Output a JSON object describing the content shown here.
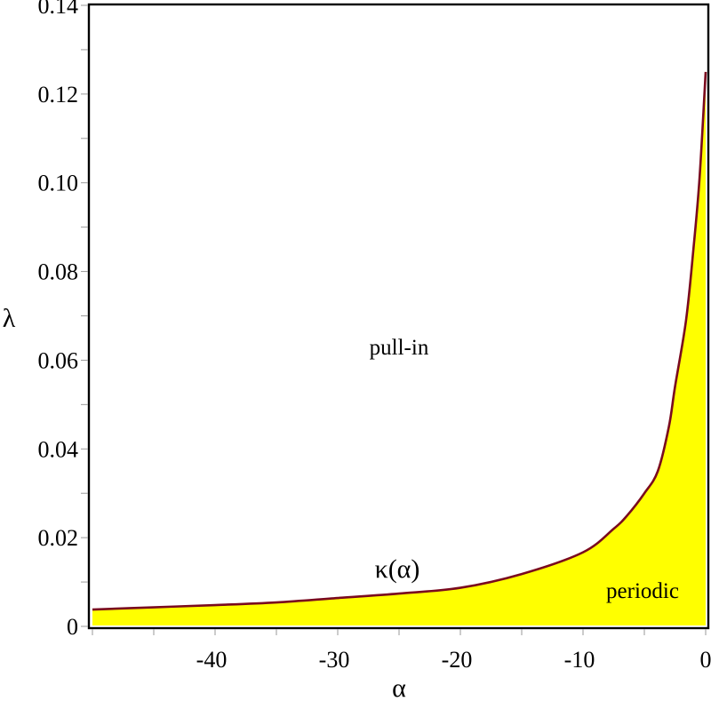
{
  "chart_data": {
    "type": "area",
    "title": "",
    "xlabel": "α",
    "ylabel": "λ",
    "xlim": [
      -50,
      0
    ],
    "ylim": [
      0,
      0.14
    ],
    "grid": false,
    "legend": null,
    "x_ticks": [
      -40,
      -30,
      -20,
      -10,
      0
    ],
    "x_tick_labels": [
      "-40",
      "-30",
      "-20",
      "-10",
      "0"
    ],
    "x_minor_ticks": [
      -50,
      -45,
      -35,
      -25,
      -15,
      -5
    ],
    "y_ticks": [
      0,
      0.02,
      0.04,
      0.06,
      0.08,
      0.1,
      0.12,
      0.14
    ],
    "y_tick_labels": [
      "0",
      "0.02",
      "0.04",
      "0.06",
      "0.08",
      "0.10",
      "0.12",
      "0.14"
    ],
    "y_minor_ticks": [
      0.01,
      0.03,
      0.05,
      0.07,
      0.09,
      0.11,
      0.13
    ],
    "series": [
      {
        "name": "κ(α)",
        "line_color": "#7a0a1e",
        "fill_color": "#ffff00",
        "fill_below": true,
        "x": [
          -50,
          -45,
          -40,
          -35,
          -30,
          -25,
          -20,
          -15,
          -10,
          -7.5,
          -6.4,
          -5,
          -3.9,
          -3.0,
          -2.5,
          -1.6,
          -1.0,
          -0.5,
          0
        ],
        "y": [
          0.0038,
          0.0043,
          0.0048,
          0.0054,
          0.0064,
          0.0074,
          0.0087,
          0.0118,
          0.0167,
          0.022,
          0.025,
          0.03,
          0.035,
          0.045,
          0.054,
          0.069,
          0.085,
          0.101,
          0.125
        ]
      }
    ],
    "annotations": [
      {
        "text": "pull-in",
        "x": -25,
        "y": 0.063
      },
      {
        "text": "κ(α)",
        "x": -25,
        "y": 0.0125
      },
      {
        "text": "periodic",
        "x": -3.9,
        "y": 0.008
      }
    ]
  },
  "labels": {
    "xlabel": "α",
    "ylabel": "λ",
    "region_above": "pull-in",
    "region_below": "periodic",
    "curve": "κ(α)"
  }
}
